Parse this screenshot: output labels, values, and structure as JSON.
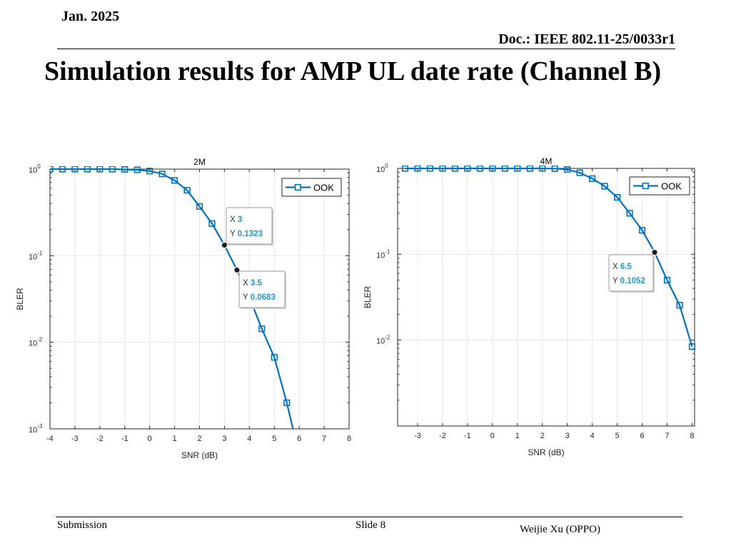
{
  "slide": {
    "date": "Jan. 2025",
    "doc": "Doc.: IEEE 802.11-25/0033r1",
    "title": "Simulation results for AMP UL date rate (Channel B)",
    "footer_left": "Submission",
    "footer_center": "Slide 8",
    "footer_right": "Weijie Xu (OPPO)"
  },
  "colors": {
    "series": "#0072BD",
    "datatip_value": "#1a9ad6",
    "axis": "#262626",
    "grid": "#e6e6e6"
  },
  "chart_data": [
    {
      "type": "line",
      "title": "2M",
      "xlabel": "SNR (dB)",
      "ylabel": "BLER",
      "xlim": [
        -4,
        8
      ],
      "ylim": [
        0.001,
        1
      ],
      "yscale": "log",
      "xticks": [
        -4,
        -3,
        -2,
        -1,
        0,
        1,
        2,
        3,
        4,
        5,
        6,
        7,
        8
      ],
      "yticks": [
        {
          "value": 1,
          "base": "10",
          "exp": "0"
        },
        {
          "value": 0.1,
          "base": "10",
          "exp": "-1"
        },
        {
          "value": 0.01,
          "base": "10",
          "exp": "-2"
        },
        {
          "value": 0.001,
          "base": "10",
          "exp": "-3"
        }
      ],
      "grid": true,
      "legend_position": "top-right",
      "series": [
        {
          "name": "OOK",
          "x": [
            -4,
            -3.5,
            -3,
            -2.5,
            -2,
            -1.5,
            -1,
            -0.5,
            0,
            0.5,
            1,
            1.5,
            2,
            2.5,
            3,
            3.5,
            4,
            4.5,
            5,
            5.5,
            6
          ],
          "y": [
            1,
            1,
            1,
            1,
            1,
            1,
            0.99,
            0.98,
            0.95,
            0.88,
            0.74,
            0.57,
            0.37,
            0.235,
            0.1323,
            0.0683,
            0.033,
            0.0143,
            0.0067,
            0.002,
            0.0005
          ],
          "markers": [
            true,
            true,
            true,
            true,
            true,
            true,
            true,
            true,
            true,
            true,
            true,
            true,
            true,
            true,
            false,
            false,
            true,
            true,
            true,
            true,
            false
          ]
        }
      ],
      "datatips": [
        {
          "x": 3,
          "y": 0.1323,
          "x_label": "X",
          "y_label": "Y",
          "x_text": "3",
          "y_text": "0.1323"
        },
        {
          "x": 3.5,
          "y": 0.0683,
          "x_label": "X",
          "y_label": "Y",
          "x_text": "3.5",
          "y_text": "0.0683"
        }
      ]
    },
    {
      "type": "line",
      "title": "4M",
      "xlabel": "SNR (dB)",
      "ylabel": "BLER",
      "xlim": [
        -3.8,
        8.1
      ],
      "ylim": [
        0.001,
        1
      ],
      "yscale": "log",
      "xticks": [
        -3,
        -2,
        -1,
        0,
        1,
        2,
        3,
        4,
        5,
        6,
        7,
        8
      ],
      "yticks": [
        {
          "value": 1,
          "base": "10",
          "exp": "0"
        },
        {
          "value": 0.1,
          "base": "10",
          "exp": "-1"
        },
        {
          "value": 0.01,
          "base": "10",
          "exp": "-2"
        }
      ],
      "grid": true,
      "legend_position": "top-right",
      "series": [
        {
          "name": "OOK",
          "x": [
            -3.5,
            -3,
            -2.5,
            -2,
            -1.5,
            -1,
            -0.5,
            0,
            0.5,
            1,
            1.5,
            2,
            2.5,
            3,
            3.5,
            4,
            4.5,
            5,
            5.5,
            6,
            6.5,
            7,
            7.5,
            8
          ],
          "y": [
            1,
            1,
            1,
            1,
            1,
            1,
            1,
            1,
            1,
            1,
            1,
            1,
            0.995,
            0.97,
            0.89,
            0.76,
            0.62,
            0.46,
            0.3,
            0.19,
            0.1052,
            0.05,
            0.0255,
            0.0084
          ],
          "markers": [
            true,
            true,
            true,
            true,
            true,
            true,
            true,
            true,
            true,
            true,
            true,
            true,
            true,
            true,
            true,
            true,
            true,
            true,
            true,
            true,
            false,
            true,
            true,
            true
          ]
        }
      ],
      "datatips": [
        {
          "x": 6.5,
          "y": 0.1052,
          "x_label": "X",
          "y_label": "Y",
          "x_text": "6.5",
          "y_text": "0.1052"
        }
      ]
    }
  ]
}
